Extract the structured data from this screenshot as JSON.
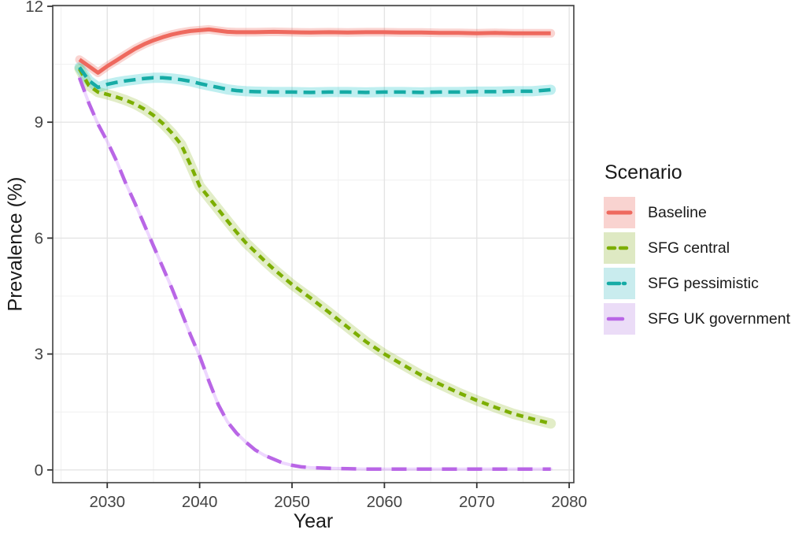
{
  "legend": {
    "title": "Scenario",
    "items": [
      {
        "label": "Baseline"
      },
      {
        "label": "SFG central"
      },
      {
        "label": "SFG pessimistic"
      },
      {
        "label": "SFG UK government"
      }
    ]
  },
  "chart_data": {
    "type": "line",
    "title": "",
    "xlabel": "Year",
    "ylabel": "Prevalence (%)",
    "xlim": [
      2024.1,
      2080.5
    ],
    "ylim": [
      -0.33,
      12.02
    ],
    "x_ticks": [
      2030,
      2040,
      2050,
      2060,
      2070,
      2080
    ],
    "x_minor": [
      2025,
      2035,
      2045,
      2055,
      2065,
      2075
    ],
    "y_ticks": [
      0,
      3,
      6,
      9,
      12
    ],
    "y_minor": [
      1.5,
      4.5,
      7.5,
      10.5
    ],
    "grid": true,
    "legend_position": "right",
    "legend_title": "Scenario",
    "colors": {
      "grid_major": "#e4e4e4",
      "grid_minor": "#f0f0f0",
      "panel_border": "#404040",
      "tick": "#333333",
      "tick_label": "#444444"
    },
    "series": [
      {
        "name": "Baseline",
        "color": "#ee695e",
        "ribbon_color": "rgba(238,105,94,0.28)",
        "ribbon_width": 11,
        "line_width": 5,
        "dash": "",
        "key_bg": "#f9d3d0",
        "key_dash": "",
        "x": [
          2027,
          2028,
          2029,
          2030,
          2031,
          2032,
          2033,
          2034,
          2035,
          2036,
          2037,
          2038,
          2039,
          2040,
          2041,
          2042,
          2043,
          2044,
          2046,
          2048,
          2050,
          2052,
          2054,
          2056,
          2058,
          2060,
          2062,
          2064,
          2066,
          2068,
          2070,
          2072,
          2074,
          2076,
          2078
        ],
        "y": [
          10.62,
          10.45,
          10.28,
          10.45,
          10.6,
          10.75,
          10.9,
          11.02,
          11.12,
          11.2,
          11.27,
          11.32,
          11.36,
          11.38,
          11.4,
          11.37,
          11.34,
          11.33,
          11.33,
          11.34,
          11.33,
          11.32,
          11.33,
          11.32,
          11.33,
          11.33,
          11.32,
          11.32,
          11.31,
          11.31,
          11.3,
          11.31,
          11.3,
          11.3,
          11.3
        ]
      },
      {
        "name": "SFG central",
        "color": "#7cae00",
        "ribbon_color": "rgba(124,174,0,0.22)",
        "ribbon_width": 13,
        "line_width": 4.5,
        "dash": "9 6.5",
        "key_bg": "#dee9c3",
        "key_dash": "8 7",
        "x": [
          2027,
          2028,
          2029,
          2030,
          2031,
          2032,
          2033,
          2034,
          2035,
          2036,
          2037,
          2038,
          2039,
          2040,
          2041,
          2042,
          2043,
          2044,
          2045,
          2046,
          2047,
          2048,
          2049,
          2050,
          2052,
          2054,
          2056,
          2058,
          2060,
          2062,
          2064,
          2066,
          2068,
          2070,
          2072,
          2074,
          2076,
          2078
        ],
        "y": [
          10.38,
          9.95,
          9.78,
          9.72,
          9.65,
          9.57,
          9.47,
          9.34,
          9.18,
          8.97,
          8.72,
          8.42,
          7.9,
          7.35,
          7.05,
          6.75,
          6.45,
          6.15,
          5.88,
          5.65,
          5.42,
          5.2,
          5.0,
          4.8,
          4.45,
          4.08,
          3.7,
          3.32,
          3.0,
          2.72,
          2.45,
          2.22,
          2.0,
          1.8,
          1.62,
          1.45,
          1.32,
          1.2
        ]
      },
      {
        "name": "SFG pessimistic",
        "color": "#16aba5",
        "ribbon_color": "rgba(0,191,196,0.25)",
        "ribbon_width": 13,
        "line_width": 4.5,
        "dash": "15 8",
        "key_bg": "#c9ecee",
        "key_dash": "14 5 2 7",
        "x": [
          2027,
          2028,
          2029,
          2030,
          2031,
          2032,
          2033,
          2034,
          2035,
          2036,
          2037,
          2038,
          2039,
          2040,
          2041,
          2042,
          2043,
          2044,
          2045,
          2046,
          2048,
          2050,
          2052,
          2054,
          2056,
          2058,
          2060,
          2062,
          2064,
          2066,
          2068,
          2070,
          2072,
          2074,
          2076,
          2078
        ],
        "y": [
          10.42,
          10.08,
          9.9,
          9.98,
          10.03,
          10.07,
          10.1,
          10.13,
          10.15,
          10.15,
          10.13,
          10.1,
          10.06,
          10.0,
          9.95,
          9.9,
          9.85,
          9.82,
          9.8,
          9.79,
          9.78,
          9.78,
          9.77,
          9.78,
          9.78,
          9.77,
          9.78,
          9.78,
          9.77,
          9.78,
          9.78,
          9.79,
          9.79,
          9.8,
          9.8,
          9.84
        ]
      },
      {
        "name": "SFG UK government",
        "color": "#b966e6",
        "ribbon_color": "rgba(199,124,255,0.3)",
        "ribbon_width": 4,
        "line_width": 4.5,
        "dash": "19 13",
        "key_bg": "#ebdcf7",
        "key_dash": "18 22",
        "x": [
          2027,
          2028,
          2029,
          2030,
          2031,
          2032,
          2033,
          2034,
          2035,
          2036,
          2037,
          2038,
          2039,
          2040,
          2041,
          2042,
          2043,
          2044,
          2045,
          2046,
          2047,
          2048,
          2049,
          2050,
          2051,
          2052,
          2054,
          2056,
          2058,
          2060,
          2065,
          2070,
          2075,
          2078
        ],
        "y": [
          10.15,
          9.5,
          8.95,
          8.5,
          8.0,
          7.42,
          6.9,
          6.35,
          5.8,
          5.25,
          4.7,
          4.1,
          3.5,
          2.95,
          2.3,
          1.7,
          1.25,
          0.95,
          0.72,
          0.52,
          0.38,
          0.28,
          0.18,
          0.12,
          0.08,
          0.06,
          0.04,
          0.03,
          0.02,
          0.02,
          0.02,
          0.02,
          0.02,
          0.02
        ]
      }
    ]
  }
}
